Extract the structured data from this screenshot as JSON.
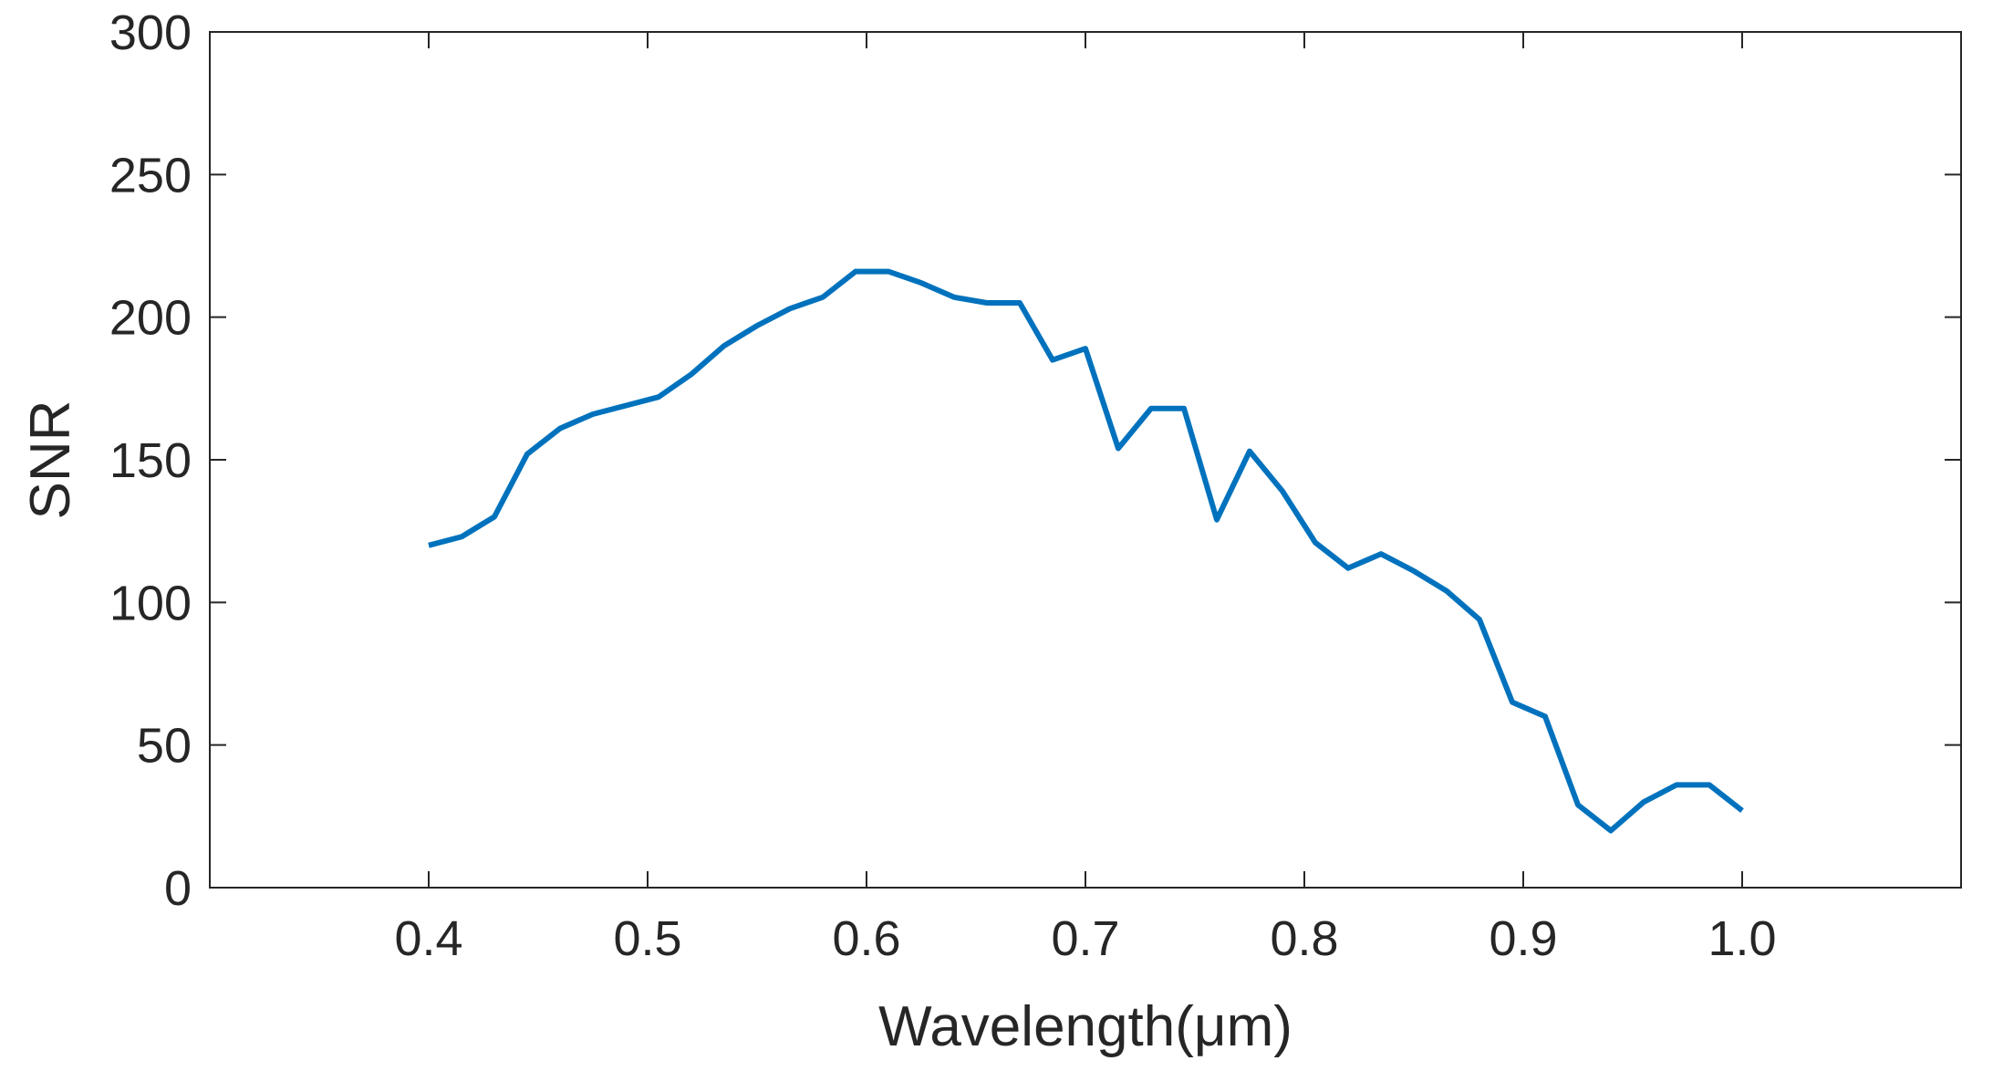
{
  "chart_data": {
    "type": "line",
    "title": "",
    "xlabel": "Wavelength(μm)",
    "ylabel": "SNR",
    "xlim": [
      0.3,
      1.1
    ],
    "ylim": [
      0,
      300
    ],
    "x_ticks": [
      0.4,
      0.5,
      0.6,
      0.7,
      0.8,
      0.9,
      1.0
    ],
    "x_tick_labels": [
      "0.4",
      "0.5",
      "0.6",
      "0.7",
      "0.8",
      "0.9",
      "1.0"
    ],
    "y_ticks": [
      0,
      50,
      100,
      150,
      200,
      250,
      300
    ],
    "y_tick_labels": [
      "0",
      "50",
      "100",
      "150",
      "200",
      "250",
      "300"
    ],
    "grid": false,
    "legend": "none",
    "series": [
      {
        "color": "#0072BD",
        "x": [
          0.4,
          0.415,
          0.43,
          0.445,
          0.46,
          0.475,
          0.49,
          0.505,
          0.52,
          0.535,
          0.55,
          0.565,
          0.58,
          0.595,
          0.61,
          0.625,
          0.64,
          0.655,
          0.67,
          0.685,
          0.7,
          0.715,
          0.73,
          0.745,
          0.76,
          0.775,
          0.79,
          0.805,
          0.82,
          0.835,
          0.85,
          0.865,
          0.88,
          0.895,
          0.91,
          0.925,
          0.94,
          0.955,
          0.97,
          0.985,
          1.0
        ],
        "y": [
          120,
          123,
          130,
          152,
          161,
          166,
          169,
          172,
          180,
          190,
          197,
          203,
          207,
          216,
          216,
          212,
          207,
          205,
          205,
          185,
          189,
          154,
          168,
          168,
          129,
          153,
          139,
          121,
          112,
          117,
          111,
          104,
          94,
          65,
          60,
          29,
          20,
          30,
          36,
          36,
          27
        ]
      }
    ]
  }
}
